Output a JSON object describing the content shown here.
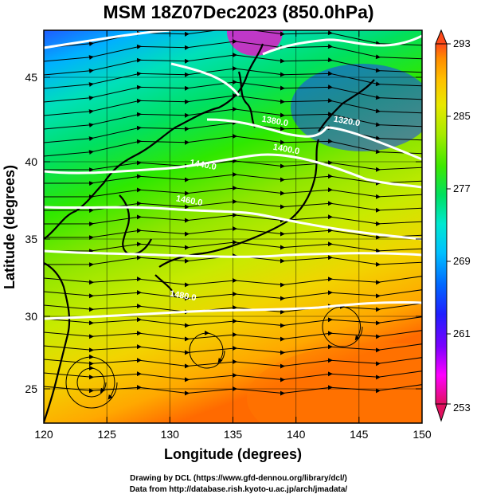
{
  "title": "MSM 18Z07Dec2023 (850.0hPa)",
  "x_axis": {
    "label": "Longitude (degrees)",
    "range": [
      120,
      150
    ],
    "ticks": [
      "120",
      "125",
      "130",
      "135",
      "140",
      "145",
      "150"
    ]
  },
  "y_axis": {
    "label": "Latitude  (degrees)",
    "range": [
      22.4,
      47.6
    ],
    "ticks": [
      "25",
      "30",
      "35",
      "40",
      "45"
    ]
  },
  "colorbar": {
    "range": [
      253,
      293
    ],
    "ticks": [
      "293",
      "285",
      "277",
      "269",
      "261",
      "253"
    ],
    "colors": [
      "#e0115f",
      "#ff00ff",
      "#7b00ff",
      "#1f1fff",
      "#0066ff",
      "#00c0ff",
      "#00e8d0",
      "#00e060",
      "#3ce800",
      "#a8ea00",
      "#e8e800",
      "#ffc000",
      "#ff8c00",
      "#ff4a1a"
    ]
  },
  "contour_labels": [
    {
      "text": "1380.0",
      "lon": 138.3,
      "lat": 41.6
    },
    {
      "text": "1320.0",
      "lon": 144.0,
      "lat": 41.6
    },
    {
      "text": "1400.0",
      "lon": 139.2,
      "lat": 39.8
    },
    {
      "text": "1440.0",
      "lon": 132.6,
      "lat": 38.8
    },
    {
      "text": "1460.0",
      "lon": 131.5,
      "lat": 36.5
    },
    {
      "text": "1480.0",
      "lon": 131.0,
      "lat": 30.4
    }
  ],
  "credits": [
    "Drawing by DCL (https://www.gfd-dennou.org/library/dcl/)",
    "Data from http://database.rish.kyoto-u.ac.jp/arch/jmadata/"
  ]
}
